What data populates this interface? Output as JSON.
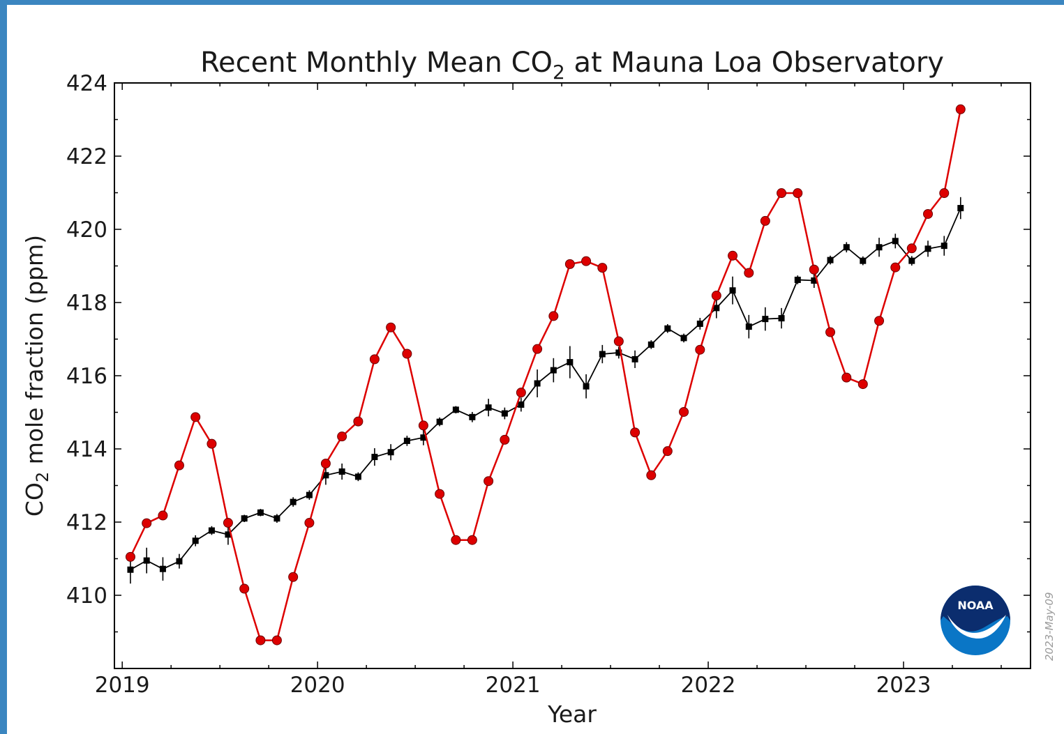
{
  "chart_data": {
    "type": "line",
    "title_prefix": "Recent Monthly Mean CO",
    "title_sub": "2",
    "title_suffix": " at Mauna Loa Observatory",
    "xlabel": "Year",
    "ylabel_prefix": "CO",
    "ylabel_sub": "2",
    "ylabel_suffix": " mole fraction (ppm)",
    "xlim": [
      2018.96,
      2023.65
    ],
    "ylim": [
      408,
      424
    ],
    "x_ticks": [
      2019,
      2020,
      2021,
      2022,
      2023
    ],
    "x_tick_labels": [
      "2019",
      "2020",
      "2021",
      "2022",
      "2023"
    ],
    "y_ticks": [
      410,
      412,
      414,
      416,
      418,
      420,
      422,
      424
    ],
    "y_tick_labels": [
      "410",
      "412",
      "414",
      "416",
      "418",
      "420",
      "422",
      "424"
    ],
    "grid": false,
    "series": [
      {
        "color": "#dd0000",
        "marker": "circle",
        "x": [
          2019.042,
          2019.125,
          2019.208,
          2019.292,
          2019.375,
          2019.458,
          2019.542,
          2019.625,
          2019.708,
          2019.792,
          2019.875,
          2019.958,
          2020.042,
          2020.125,
          2020.208,
          2020.292,
          2020.375,
          2020.458,
          2020.542,
          2020.625,
          2020.708,
          2020.792,
          2020.875,
          2020.958,
          2021.042,
          2021.125,
          2021.208,
          2021.292,
          2021.375,
          2021.458,
          2021.542,
          2021.625,
          2021.708,
          2021.792,
          2021.875,
          2021.958,
          2022.042,
          2022.125,
          2022.208,
          2022.292,
          2022.375,
          2022.458,
          2022.542,
          2022.625,
          2022.708,
          2022.792,
          2022.875,
          2022.958,
          2023.042,
          2023.125,
          2023.208,
          2023.292
        ],
        "y": [
          411.05,
          411.97,
          412.18,
          413.55,
          414.87,
          414.14,
          411.98,
          410.18,
          408.77,
          408.77,
          410.5,
          411.98,
          413.6,
          414.34,
          414.75,
          416.45,
          417.32,
          416.6,
          414.64,
          412.77,
          411.51,
          411.51,
          413.12,
          414.25,
          415.54,
          416.73,
          417.63,
          419.05,
          419.13,
          418.95,
          416.94,
          414.45,
          413.28,
          413.94,
          415.01,
          416.71,
          418.19,
          419.28,
          418.81,
          420.23,
          420.99,
          420.99,
          418.9,
          417.19,
          415.95,
          415.77,
          417.5,
          418.96,
          419.48,
          420.42,
          420.99,
          423.28
        ]
      },
      {
        "color": "#000000",
        "marker": "square",
        "x": [
          2019.042,
          2019.125,
          2019.208,
          2019.292,
          2019.375,
          2019.458,
          2019.542,
          2019.625,
          2019.708,
          2019.792,
          2019.875,
          2019.958,
          2020.042,
          2020.125,
          2020.208,
          2020.292,
          2020.375,
          2020.458,
          2020.542,
          2020.625,
          2020.708,
          2020.792,
          2020.875,
          2020.958,
          2021.042,
          2021.125,
          2021.208,
          2021.292,
          2021.375,
          2021.458,
          2021.542,
          2021.625,
          2021.708,
          2021.792,
          2021.875,
          2021.958,
          2022.042,
          2022.125,
          2022.208,
          2022.292,
          2022.375,
          2022.458,
          2022.542,
          2022.625,
          2022.708,
          2022.792,
          2022.875,
          2022.958,
          2023.042,
          2023.125,
          2023.208,
          2023.292
        ],
        "y": [
          410.7,
          410.95,
          410.72,
          410.93,
          411.49,
          411.77,
          411.66,
          412.1,
          412.26,
          412.1,
          412.55,
          412.74,
          413.28,
          413.38,
          413.24,
          413.78,
          413.91,
          414.22,
          414.31,
          414.74,
          415.07,
          414.87,
          415.13,
          414.97,
          415.21,
          415.79,
          416.15,
          416.37,
          415.71,
          416.59,
          416.63,
          416.45,
          416.85,
          417.29,
          417.03,
          417.42,
          417.85,
          418.33,
          417.34,
          417.55,
          417.57,
          418.62,
          418.6,
          419.16,
          419.51,
          419.14,
          419.51,
          419.68,
          419.14,
          419.47,
          419.55,
          420.58
        ],
        "error": [
          0.38,
          0.35,
          0.32,
          0.2,
          0.15,
          0.12,
          0.28,
          0.1,
          0.1,
          0.12,
          0.13,
          0.13,
          0.26,
          0.22,
          0.12,
          0.24,
          0.22,
          0.14,
          0.21,
          0.12,
          0.1,
          0.14,
          0.24,
          0.16,
          0.19,
          0.38,
          0.33,
          0.44,
          0.33,
          0.25,
          0.16,
          0.24,
          0.12,
          0.12,
          0.12,
          0.16,
          0.28,
          0.38,
          0.32,
          0.32,
          0.28,
          0.12,
          0.2,
          0.12,
          0.14,
          0.12,
          0.26,
          0.2,
          0.13,
          0.22,
          0.27,
          0.3
        ]
      }
    ],
    "date_stamp": "2023-May-09",
    "logo_text": "NOAA"
  }
}
